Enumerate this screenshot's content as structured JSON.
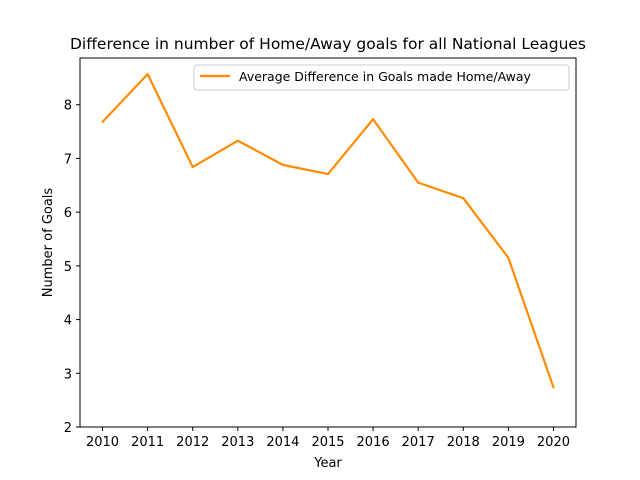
{
  "chart_data": {
    "type": "line",
    "title": "Difference in number of Home/Away goals for all National Leagues",
    "xlabel": "Year",
    "ylabel": "Number of Goals",
    "x": [
      2010,
      2011,
      2012,
      2013,
      2014,
      2015,
      2016,
      2017,
      2018,
      2019,
      2020
    ],
    "x_tick_labels": [
      "2010",
      "2011",
      "2012",
      "2013",
      "2014",
      "2015",
      "2016",
      "2017",
      "2018",
      "2019",
      "2020"
    ],
    "ylim": [
      2,
      8.87
    ],
    "y_ticks": [
      2,
      3,
      4,
      5,
      6,
      7,
      8
    ],
    "y_tick_labels": [
      "2",
      "3",
      "4",
      "5",
      "6",
      "7",
      "8"
    ],
    "grid": false,
    "legend_position": "top-right",
    "series": [
      {
        "name": "Average Difference in Goals made Home/Away",
        "color": "#ff8c00",
        "values": [
          7.68,
          8.57,
          6.84,
          7.33,
          6.88,
          6.71,
          7.73,
          6.55,
          6.26,
          5.15,
          2.74
        ]
      }
    ]
  }
}
